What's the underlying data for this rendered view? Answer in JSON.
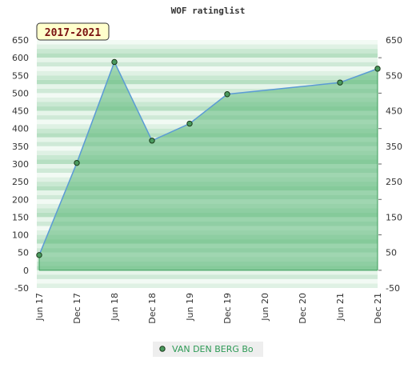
{
  "chart_data": {
    "type": "area",
    "title": "WOF ratinglist",
    "badge": "2017-2021",
    "x_tick_labels": [
      "Jun 17",
      "Dec 17",
      "Jun 18",
      "Dec 18",
      "Jun 19",
      "Dec 19",
      "Jun 20",
      "Dec 20",
      "Jun 21",
      "Dec 21"
    ],
    "y_left_ticks": [
      650,
      600,
      550,
      500,
      450,
      400,
      350,
      300,
      250,
      200,
      150,
      100,
      50,
      0,
      -50
    ],
    "y_right_ticks": [
      650,
      550,
      450,
      350,
      250,
      150,
      50,
      -50
    ],
    "ylim": [
      -50,
      650
    ],
    "series": [
      {
        "name": "VAN DEN BERG Bo",
        "points": [
          {
            "x": 0,
            "y": 43
          },
          {
            "x": 1,
            "y": 303
          },
          {
            "x": 2,
            "y": 588
          },
          {
            "x": 3,
            "y": 366
          },
          {
            "x": 4,
            "y": 414
          },
          {
            "x": 5,
            "y": 497
          },
          {
            "x": 8,
            "y": 530
          },
          {
            "x": 9,
            "y": 569
          }
        ]
      }
    ],
    "grid": true,
    "legend_position": "bottom",
    "colors": {
      "line": "#5b9bd5",
      "area": "#5cb87a",
      "marker": "#4a9a5e",
      "axis": "#3c9b5a",
      "legend_text": "#2e9a56",
      "badge_bg": "#ffffcc",
      "badge_text": "#7a1010"
    }
  }
}
